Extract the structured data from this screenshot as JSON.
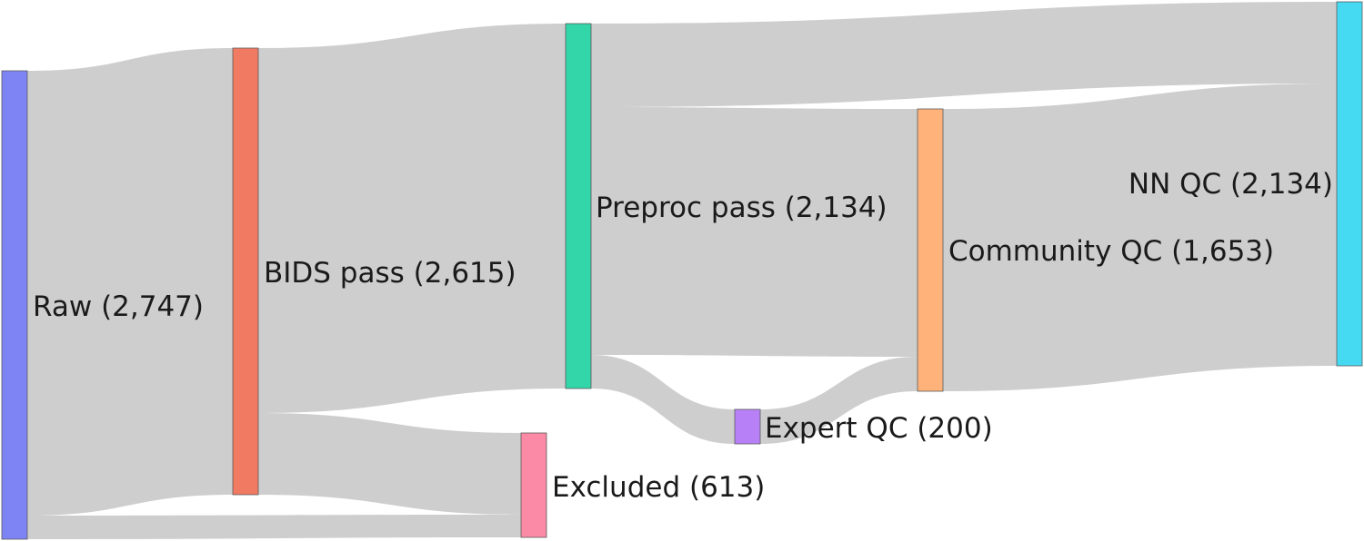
{
  "diagram": {
    "type": "sankey",
    "nodes": [
      {
        "id": "raw",
        "label": "Raw (2,747)",
        "color": "#7f84f5"
      },
      {
        "id": "bids",
        "label": "BIDS pass (2,615)",
        "color": "#f07a62"
      },
      {
        "id": "preproc",
        "label": "Preproc pass (2,134)",
        "color": "#33d6a8"
      },
      {
        "id": "excluded",
        "label": "Excluded (613)",
        "color": "#fb8aa6"
      },
      {
        "id": "expert",
        "label": "Expert QC (200)",
        "color": "#b880f7"
      },
      {
        "id": "community",
        "label": "Community QC (1,653)",
        "color": "#ffb37a"
      },
      {
        "id": "nn",
        "label": "NN QC (2,134)",
        "color": "#45d9f2"
      }
    ],
    "links": [
      {
        "source": "raw",
        "target": "bids",
        "value": 2615
      },
      {
        "source": "raw",
        "target": "excluded",
        "value": 132
      },
      {
        "source": "bids",
        "target": "preproc",
        "value": 2134
      },
      {
        "source": "bids",
        "target": "excluded",
        "value": 481
      },
      {
        "source": "preproc",
        "target": "nn",
        "value": 481
      },
      {
        "source": "preproc",
        "target": "community",
        "value": 1453
      },
      {
        "source": "preproc",
        "target": "expert",
        "value": 200
      },
      {
        "source": "expert",
        "target": "community",
        "value": 200
      },
      {
        "source": "community",
        "target": "nn",
        "value": 1653
      }
    ],
    "link_color": "#cccccc"
  }
}
